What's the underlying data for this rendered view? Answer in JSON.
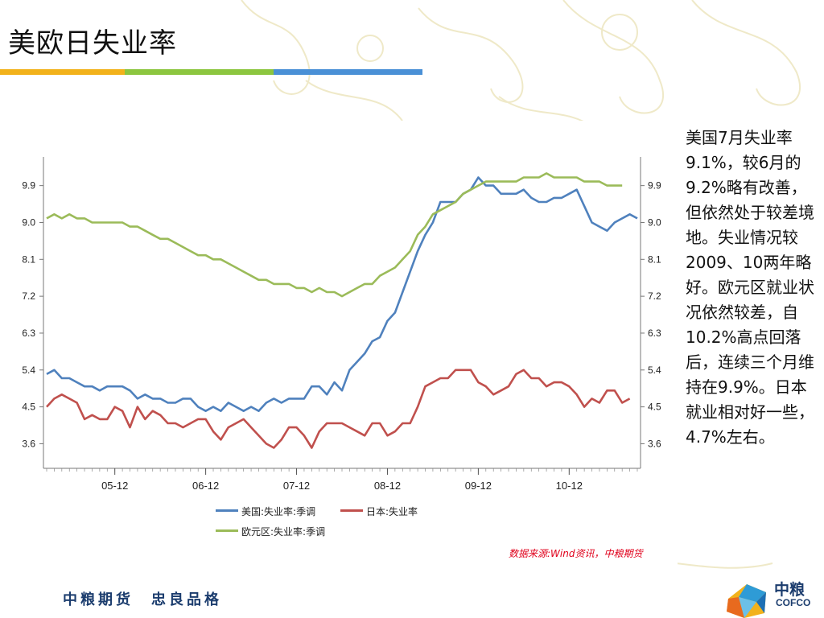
{
  "slide": {
    "title": "美欧日失业率",
    "stripe_colors": [
      "#f2b21b",
      "#8cc63f",
      "#4a90d6"
    ],
    "side_text": "美国7月失业率9.1%，较6月的9.2%略有改善，但依然处于较差境地。失业情况较2009、10两年略好。欧元区就业状况依然较差，自10.2%高点回落后，连续三个月维持在9.9%。日本就业相对好一些，4.7%左右。",
    "source": "数据来源:Wind资讯，中粮期货",
    "slogan": "中粮期货　忠良品格",
    "logo_cn": "中粮",
    "logo_en": "COFCO"
  },
  "chart_data": {
    "type": "line",
    "x_ticks": [
      "05-12",
      "06-12",
      "07-12",
      "08-12",
      "09-12",
      "10-12"
    ],
    "y_ticks": [
      3.6,
      4.5,
      5.4,
      6.3,
      7.2,
      8.1,
      9.0,
      9.9
    ],
    "ylim": [
      3.0,
      10.6
    ],
    "grid": false,
    "legend_position": "bottom",
    "x_start": "2005-03",
    "series": [
      {
        "name": "美国:失业率:季调",
        "color": "#4f81bd",
        "values": [
          5.3,
          5.4,
          5.2,
          5.2,
          5.1,
          5.0,
          5.0,
          4.9,
          5.0,
          5.0,
          5.0,
          4.9,
          4.7,
          4.8,
          4.7,
          4.7,
          4.6,
          4.6,
          4.7,
          4.7,
          4.5,
          4.4,
          4.5,
          4.4,
          4.6,
          4.5,
          4.4,
          4.5,
          4.4,
          4.6,
          4.7,
          4.6,
          4.7,
          4.7,
          4.7,
          5.0,
          5.0,
          4.8,
          5.1,
          4.9,
          5.4,
          5.6,
          5.8,
          6.1,
          6.2,
          6.6,
          6.8,
          7.3,
          7.8,
          8.3,
          8.7,
          9.0,
          9.5,
          9.5,
          9.5,
          9.7,
          9.8,
          10.1,
          9.9,
          9.9,
          9.7,
          9.7,
          9.7,
          9.8,
          9.6,
          9.5,
          9.5,
          9.6,
          9.6,
          9.7,
          9.8,
          9.4,
          9.0,
          8.9,
          8.8,
          9.0,
          9.1,
          9.2,
          9.1
        ]
      },
      {
        "name": "日本:失业率",
        "color": "#c0504d",
        "values": [
          4.5,
          4.7,
          4.8,
          4.7,
          4.6,
          4.2,
          4.3,
          4.2,
          4.2,
          4.5,
          4.4,
          4.0,
          4.5,
          4.2,
          4.4,
          4.3,
          4.1,
          4.1,
          4.0,
          4.1,
          4.2,
          4.2,
          3.9,
          3.7,
          4.0,
          4.1,
          4.2,
          4.0,
          3.8,
          3.6,
          3.5,
          3.7,
          4.0,
          4.0,
          3.8,
          3.5,
          3.9,
          4.1,
          4.1,
          4.1,
          4.0,
          3.9,
          3.8,
          4.1,
          4.1,
          3.8,
          3.9,
          4.1,
          4.1,
          4.5,
          5.0,
          5.1,
          5.2,
          5.2,
          5.4,
          5.4,
          5.4,
          5.1,
          5.0,
          4.8,
          4.9,
          5.0,
          5.3,
          5.4,
          5.2,
          5.2,
          5.0,
          5.1,
          5.1,
          5.0,
          4.8,
          4.5,
          4.7,
          4.6,
          4.9,
          4.9,
          4.6,
          4.7
        ]
      },
      {
        "name": "欧元区:失业率:季调",
        "color": "#9bbb59",
        "values": [
          9.1,
          9.2,
          9.1,
          9.2,
          9.1,
          9.1,
          9.0,
          9.0,
          9.0,
          9.0,
          9.0,
          8.9,
          8.9,
          8.8,
          8.7,
          8.6,
          8.6,
          8.5,
          8.4,
          8.3,
          8.2,
          8.2,
          8.1,
          8.1,
          8.0,
          7.9,
          7.8,
          7.7,
          7.6,
          7.6,
          7.5,
          7.5,
          7.5,
          7.4,
          7.4,
          7.3,
          7.4,
          7.3,
          7.3,
          7.2,
          7.3,
          7.4,
          7.5,
          7.5,
          7.7,
          7.8,
          7.9,
          8.1,
          8.3,
          8.7,
          8.9,
          9.2,
          9.3,
          9.4,
          9.5,
          9.7,
          9.8,
          9.9,
          10.0,
          10.0,
          10.0,
          10.0,
          10.0,
          10.1,
          10.1,
          10.1,
          10.2,
          10.1,
          10.1,
          10.1,
          10.1,
          10.0,
          10.0,
          10.0,
          9.9,
          9.9,
          9.9
        ]
      }
    ]
  }
}
